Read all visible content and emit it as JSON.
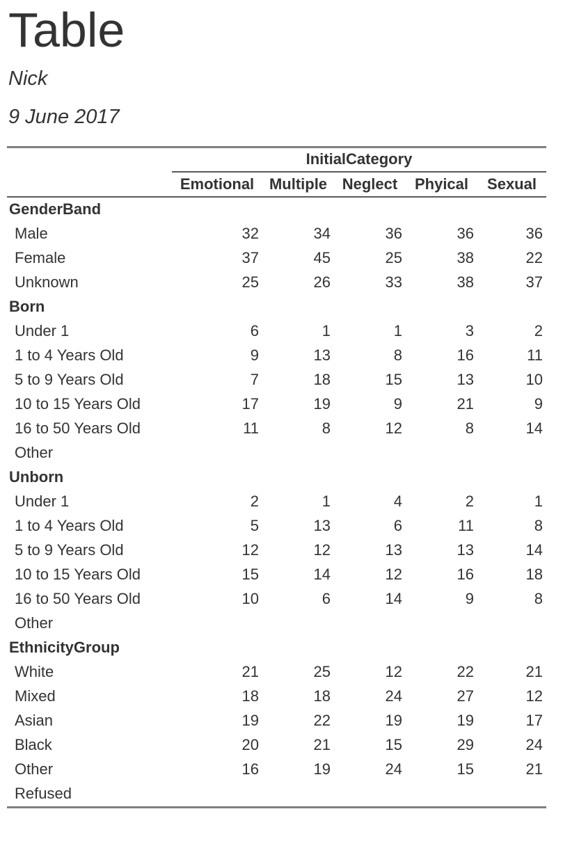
{
  "document": {
    "title": "Table",
    "author": "Nick",
    "date": "9 June 2017"
  },
  "table": {
    "span_header": "InitialCategory",
    "columns": [
      "Emotional",
      "Multiple",
      "Neglect",
      "Phyical",
      "Sexual"
    ],
    "groups": [
      {
        "label": "GenderBand",
        "rows": [
          {
            "label": "Male",
            "values": [
              "32",
              "34",
              "36",
              "36",
              "36"
            ]
          },
          {
            "label": "Female",
            "values": [
              "37",
              "45",
              "25",
              "38",
              "22"
            ]
          },
          {
            "label": "Unknown",
            "values": [
              "25",
              "26",
              "33",
              "38",
              "37"
            ]
          }
        ]
      },
      {
        "label": "Born",
        "rows": [
          {
            "label": "Under 1",
            "values": [
              "6",
              "1",
              "1",
              "3",
              "2"
            ]
          },
          {
            "label": "1 to 4 Years Old",
            "values": [
              "9",
              "13",
              "8",
              "16",
              "11"
            ]
          },
          {
            "label": "5 to 9 Years Old",
            "values": [
              "7",
              "18",
              "15",
              "13",
              "10"
            ]
          },
          {
            "label": "10 to 15 Years Old",
            "values": [
              "17",
              "19",
              "9",
              "21",
              "9"
            ]
          },
          {
            "label": "16 to 50 Years Old",
            "values": [
              "11",
              "8",
              "12",
              "8",
              "14"
            ]
          },
          {
            "label": "Other",
            "values": [
              "",
              "",
              "",
              "",
              ""
            ]
          }
        ]
      },
      {
        "label": "Unborn",
        "rows": [
          {
            "label": "Under 1",
            "values": [
              "2",
              "1",
              "4",
              "2",
              "1"
            ]
          },
          {
            "label": "1 to 4 Years Old",
            "values": [
              "5",
              "13",
              "6",
              "11",
              "8"
            ]
          },
          {
            "label": "5 to 9 Years Old",
            "values": [
              "12",
              "12",
              "13",
              "13",
              "14"
            ]
          },
          {
            "label": "10 to 15 Years Old",
            "values": [
              "15",
              "14",
              "12",
              "16",
              "18"
            ]
          },
          {
            "label": "16 to 50 Years Old",
            "values": [
              "10",
              "6",
              "14",
              "9",
              "8"
            ]
          },
          {
            "label": "Other",
            "values": [
              "",
              "",
              "",
              "",
              ""
            ]
          }
        ]
      },
      {
        "label": "EthnicityGroup",
        "rows": [
          {
            "label": "White",
            "values": [
              "21",
              "25",
              "12",
              "22",
              "21"
            ]
          },
          {
            "label": "Mixed",
            "values": [
              "18",
              "18",
              "24",
              "27",
              "12"
            ]
          },
          {
            "label": "Asian",
            "values": [
              "19",
              "22",
              "19",
              "19",
              "17"
            ]
          },
          {
            "label": "Black",
            "values": [
              "20",
              "21",
              "15",
              "29",
              "24"
            ]
          },
          {
            "label": "Other",
            "values": [
              "16",
              "19",
              "24",
              "15",
              "21"
            ]
          },
          {
            "label": "Refused",
            "values": [
              "",
              "",
              "",
              "",
              ""
            ]
          }
        ]
      }
    ]
  },
  "colors": {
    "text": "#333333",
    "rule_heavy": "#7f7f7f",
    "rule_light": "#595959",
    "background": "#ffffff"
  }
}
